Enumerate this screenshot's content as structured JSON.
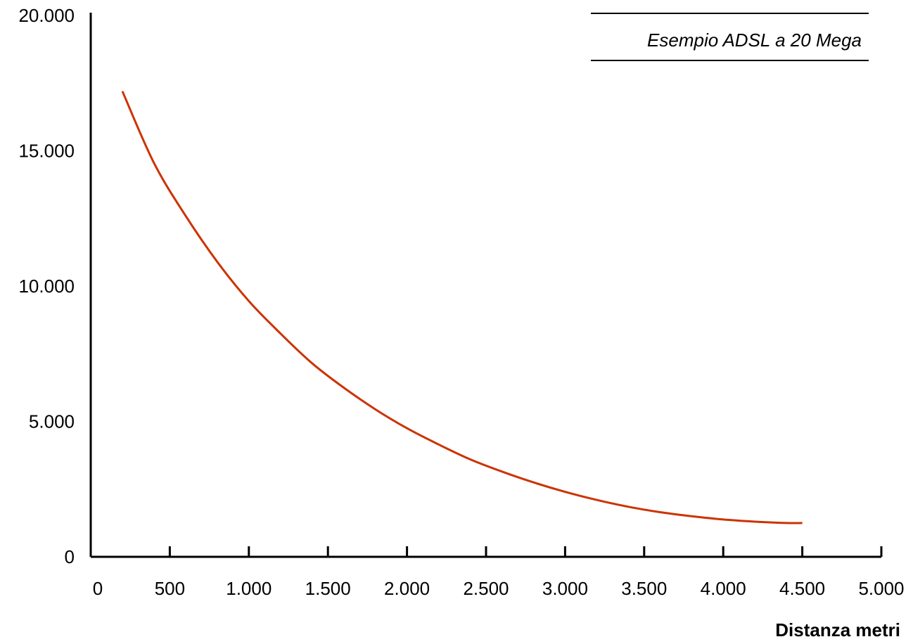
{
  "chart_data": {
    "type": "line",
    "xlabel": "Distanza metri",
    "ylabel": "",
    "xlim": [
      0,
      5000
    ],
    "ylim": [
      0,
      20000
    ],
    "x_ticks": [
      0,
      500,
      1000,
      1500,
      2000,
      2500,
      3000,
      3500,
      4000,
      4500,
      5000
    ],
    "x_tick_labels": [
      "0",
      "500",
      "1.000",
      "1.500",
      "2.000",
      "2.500",
      "3.000",
      "3.500",
      "4.000",
      "4.500",
      "5.000"
    ],
    "y_ticks": [
      0,
      5000,
      10000,
      15000,
      20000
    ],
    "y_tick_labels": [
      "0",
      "5.000",
      "10.000",
      "15.000",
      "20.000"
    ],
    "grid": false,
    "legend_position": "top-right",
    "series": [
      {
        "name": "Esempio ADSL a 20 Mega",
        "color": "#cc3300",
        "x": [
          200,
          400,
          600,
          800,
          1000,
          1200,
          1400,
          1600,
          1800,
          2000,
          2200,
          2400,
          2600,
          2800,
          3000,
          3200,
          3400,
          3600,
          3800,
          4000,
          4200,
          4400,
          4500
        ],
        "y": [
          17200,
          14550,
          12600,
          10900,
          9450,
          8250,
          7150,
          6250,
          5450,
          4750,
          4150,
          3600,
          3150,
          2750,
          2400,
          2100,
          1850,
          1650,
          1500,
          1380,
          1300,
          1250,
          1250
        ]
      }
    ]
  }
}
